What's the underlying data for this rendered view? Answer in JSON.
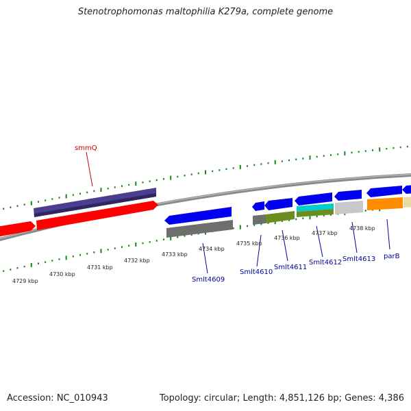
{
  "title": "Stenotrophomonas maltophilia K279a, complete genome",
  "footer": {
    "accession": "Accession: NC_010943",
    "summary": "Topology: circular; Length: 4,851,126 bp; Genes: 4,386"
  },
  "colors": {
    "forward_gene": "#0000ee",
    "reverse_gene": "#ff0000",
    "named_gene_label": "#cc0000",
    "locus_label": "#000099",
    "tick": "#118811"
  },
  "scale_labels": [
    "4729 kbp",
    "4730 kbp",
    "4731 kbp",
    "4732 kbp",
    "4733 kbp",
    "4734 kbp",
    "4735 kbp",
    "4736 kbp",
    "4737 kbp",
    "4738 kbp"
  ],
  "gene_labels": {
    "smmQ": "smmQ",
    "smlt4609": "Smlt4609",
    "smlt4610": "Smlt4610",
    "smlt4611": "Smlt4611",
    "smlt4612": "Smlt4612",
    "smlt4613": "Smlt4613",
    "parB": "parB"
  }
}
